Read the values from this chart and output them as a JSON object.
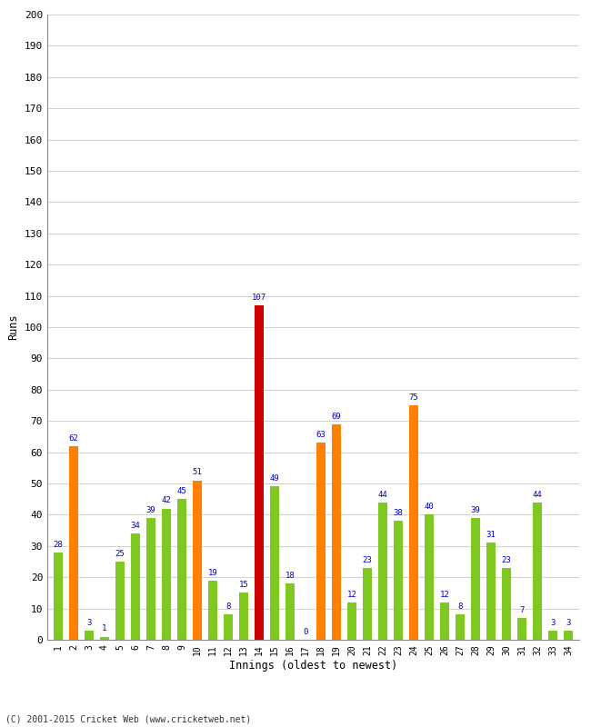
{
  "title": "",
  "xlabel": "Innings (oldest to newest)",
  "ylabel": "Runs",
  "footer": "(C) 2001-2015 Cricket Web (www.cricketweb.net)",
  "innings": [
    1,
    2,
    3,
    4,
    5,
    6,
    7,
    8,
    9,
    10,
    11,
    12,
    13,
    14,
    15,
    16,
    17,
    18,
    19,
    20,
    21,
    22,
    23,
    24,
    25,
    26,
    27,
    28,
    29,
    30,
    31,
    32,
    33,
    34
  ],
  "values": [
    28,
    62,
    3,
    1,
    25,
    34,
    39,
    42,
    45,
    51,
    19,
    8,
    15,
    107,
    49,
    18,
    0,
    63,
    69,
    12,
    23,
    44,
    38,
    75,
    40,
    12,
    8,
    39,
    31,
    23,
    7,
    44,
    3,
    3
  ],
  "colors": [
    "green",
    "orange",
    "green",
    "green",
    "green",
    "green",
    "green",
    "green",
    "green",
    "orange",
    "green",
    "green",
    "green",
    "red",
    "green",
    "green",
    "green",
    "orange",
    "orange",
    "green",
    "green",
    "green",
    "green",
    "orange",
    "green",
    "green",
    "green",
    "green",
    "green",
    "green",
    "green",
    "green",
    "green",
    "green"
  ],
  "ylim": [
    0,
    200
  ],
  "yticks": [
    0,
    10,
    20,
    30,
    40,
    50,
    60,
    70,
    80,
    90,
    100,
    110,
    120,
    130,
    140,
    150,
    160,
    170,
    180,
    190,
    200
  ],
  "bg_color": "#ffffff",
  "bar_green": "#7fc820",
  "bar_orange": "#ff8000",
  "bar_red": "#cc0000",
  "label_color": "#0000cc",
  "grid_color": "#d0d0d0"
}
